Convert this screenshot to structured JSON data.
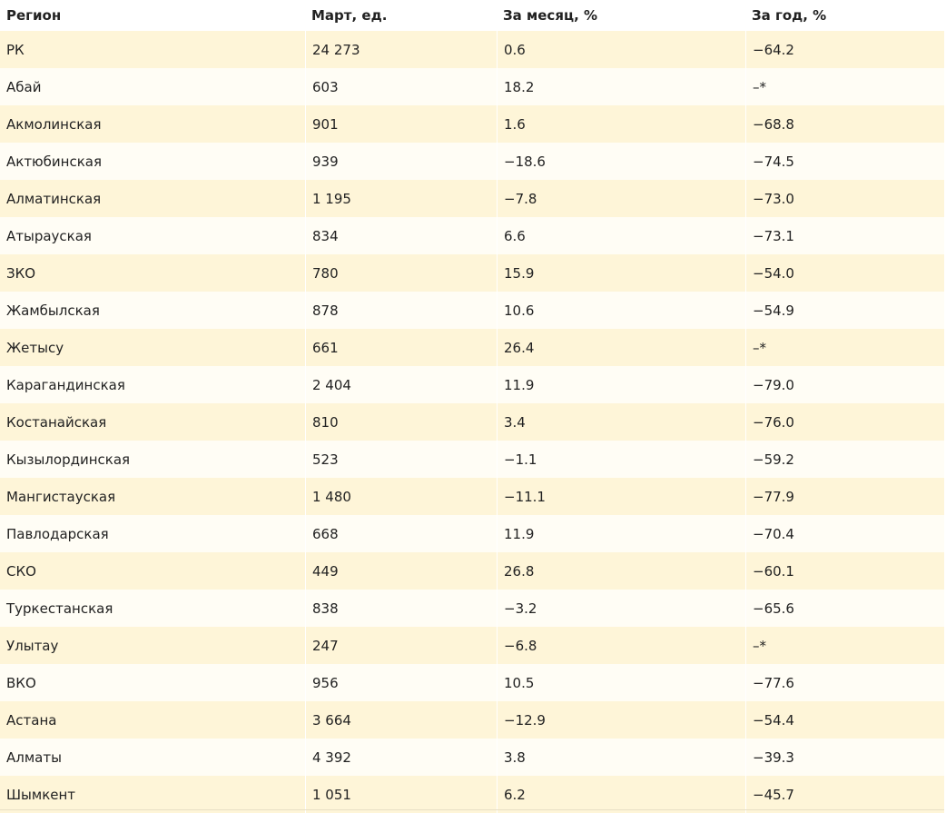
{
  "table": {
    "headers": [
      "Регион",
      "Март, ед.",
      "За месяц, %",
      "За год, %"
    ],
    "rows": [
      [
        "РК",
        "24 273",
        "0.6",
        "−64.2"
      ],
      [
        "Абай",
        "603",
        "18.2",
        "–*"
      ],
      [
        "Акмолинская",
        "901",
        "1.6",
        "−68.8"
      ],
      [
        "Актюбинская",
        "939",
        "−18.6",
        "−74.5"
      ],
      [
        "Алматинская",
        "1 195",
        "−7.8",
        "−73.0"
      ],
      [
        "Атырауская",
        "834",
        "6.6",
        "−73.1"
      ],
      [
        "ЗКО",
        "780",
        "15.9",
        "−54.0"
      ],
      [
        "Жамбылская",
        "878",
        "10.6",
        "−54.9"
      ],
      [
        "Жетысу",
        "661",
        "26.4",
        "–*"
      ],
      [
        "Карагандинская",
        "2 404",
        "11.9",
        "−79.0"
      ],
      [
        "Костанайская",
        "810",
        "3.4",
        "−76.0"
      ],
      [
        "Кызылординская",
        "523",
        "−1.1",
        "−59.2"
      ],
      [
        "Мангистауская",
        "1 480",
        "−11.1",
        "−77.9"
      ],
      [
        "Павлодарская",
        "668",
        "11.9",
        "−70.4"
      ],
      [
        "СКО",
        "449",
        "26.8",
        "−60.1"
      ],
      [
        "Туркестанская",
        "838",
        "−3.2",
        "−65.6"
      ],
      [
        "Улытау",
        "247",
        "−6.8",
        "–*"
      ],
      [
        "ВКО",
        "956",
        "10.5",
        "−77.6"
      ],
      [
        "Астана",
        "3 664",
        "−12.9",
        "−54.4"
      ],
      [
        "Алматы",
        "4 392",
        "3.8",
        "−39.3"
      ],
      [
        "Шымкент",
        "1 051",
        "6.2",
        "−45.7"
      ]
    ]
  },
  "colors": {
    "row_odd": "#fef5d8",
    "row_even": "#fffdf5",
    "text": "#222222"
  }
}
